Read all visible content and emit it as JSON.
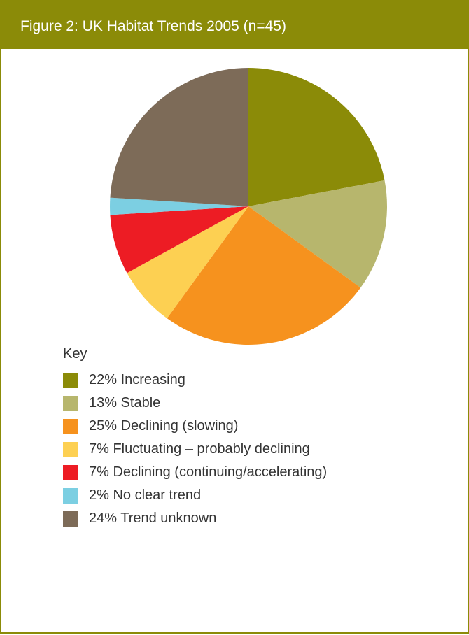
{
  "header": {
    "title": "Figure 2: UK Habitat Trends 2005 (n=45)"
  },
  "legend": {
    "title": "Key"
  },
  "colors": {
    "frame": "#8b8b08"
  },
  "chart_data": {
    "type": "pie",
    "title": "Figure 2: UK Habitat Trends 2005 (n=45)",
    "legend_title": "Key",
    "legend_position": "bottom-left",
    "slices": [
      {
        "label": "22% Increasing",
        "value": 22,
        "color": "#8b8b08"
      },
      {
        "label": "13% Stable",
        "value": 13,
        "color": "#b7b66d"
      },
      {
        "label": "25% Declining (slowing)",
        "value": 25,
        "color": "#f6921e"
      },
      {
        "label": "7% Fluctuating – probably declining",
        "value": 7,
        "color": "#fdd052"
      },
      {
        "label": "7% Declining (continuing/accelerating)",
        "value": 7,
        "color": "#ed1c24"
      },
      {
        "label": "2% No clear trend",
        "value": 2,
        "color": "#7ccfe2"
      },
      {
        "label": "24% Trend unknown",
        "value": 24,
        "color": "#7d6b58"
      }
    ]
  }
}
